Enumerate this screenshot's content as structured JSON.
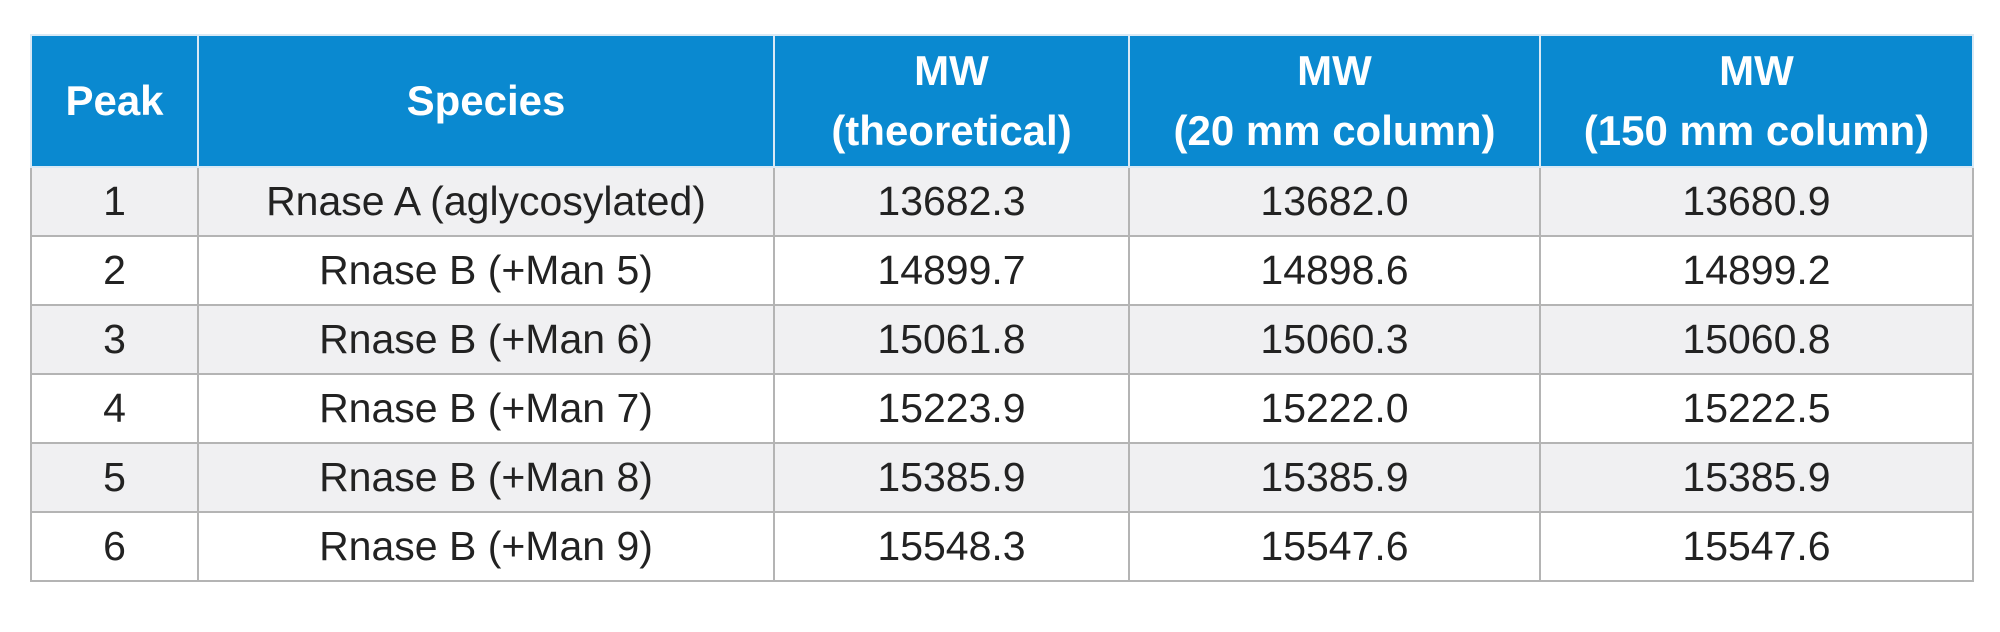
{
  "table": {
    "headers": {
      "peak": "Peak",
      "species": "Species",
      "mw_theoretical": [
        "MW",
        "(theoretical)"
      ],
      "mw_20mm": [
        "MW",
        "(20 mm column)"
      ],
      "mw_150mm": [
        "MW",
        "(150 mm column)"
      ]
    },
    "rows": [
      {
        "peak": "1",
        "species": "Rnase A (aglycosylated)",
        "mw_theoretical": "13682.3",
        "mw_20mm": "13682.0",
        "mw_150mm": "13680.9"
      },
      {
        "peak": "2",
        "species": "Rnase B (+Man 5)",
        "mw_theoretical": "14899.7",
        "mw_20mm": "14898.6",
        "mw_150mm": "14899.2"
      },
      {
        "peak": "3",
        "species": "Rnase B (+Man 6)",
        "mw_theoretical": "15061.8",
        "mw_20mm": "15060.3",
        "mw_150mm": "15060.8"
      },
      {
        "peak": "4",
        "species": "Rnase B (+Man 7)",
        "mw_theoretical": "15223.9",
        "mw_20mm": "15222.0",
        "mw_150mm": "15222.5"
      },
      {
        "peak": "5",
        "species": "Rnase B (+Man 8)",
        "mw_theoretical": "15385.9",
        "mw_20mm": "15385.9",
        "mw_150mm": "15385.9"
      },
      {
        "peak": "6",
        "species": "Rnase B (+Man 9)",
        "mw_theoretical": "15548.3",
        "mw_20mm": "15547.6",
        "mw_150mm": "15547.6"
      }
    ]
  },
  "colors": {
    "header_bg": "#0a89d0",
    "header_text": "#ffffff",
    "row_alt_bg": "#f0f0f2",
    "border": "#b4b4b4"
  }
}
